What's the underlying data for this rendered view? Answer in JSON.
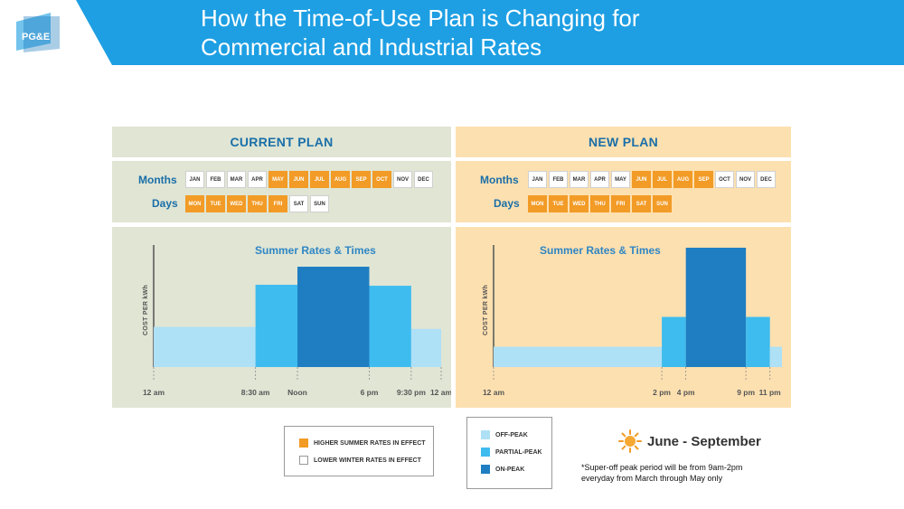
{
  "header": {
    "logo_text": "PG&E",
    "title_line1": "How the Time-of-Use Plan is Changing for",
    "title_line2": "Commercial and Industrial Rates"
  },
  "colors": {
    "header_blue": "#1e9fe3",
    "higher_summer": "#f29b26",
    "off_peak": "#aee0f6",
    "partial_peak": "#3ebcef",
    "on_peak": "#1f7ec2",
    "current_bg": "#e0e5d4",
    "new_bg": "#fde0b0"
  },
  "current_plan": {
    "heading": "CURRENT PLAN",
    "months_label": "Months",
    "days_label": "Days",
    "months": [
      {
        "label": "JAN",
        "summer": false
      },
      {
        "label": "FEB",
        "summer": false
      },
      {
        "label": "MAR",
        "summer": false
      },
      {
        "label": "APR",
        "summer": false
      },
      {
        "label": "MAY",
        "summer": true
      },
      {
        "label": "JUN",
        "summer": true
      },
      {
        "label": "JUL",
        "summer": true
      },
      {
        "label": "AUG",
        "summer": true
      },
      {
        "label": "SEP",
        "summer": true
      },
      {
        "label": "OCT",
        "summer": true
      },
      {
        "label": "NOV",
        "summer": false
      },
      {
        "label": "DEC",
        "summer": false
      }
    ],
    "days": [
      {
        "label": "MON",
        "summer": true
      },
      {
        "label": "TUE",
        "summer": true
      },
      {
        "label": "WED",
        "summer": true
      },
      {
        "label": "THU",
        "summer": true
      },
      {
        "label": "FRI",
        "summer": true
      },
      {
        "label": "SAT",
        "summer": false
      },
      {
        "label": "SUN",
        "summer": false
      }
    ]
  },
  "new_plan": {
    "heading": "NEW PLAN",
    "months_label": "Months",
    "days_label": "Days",
    "months": [
      {
        "label": "JAN",
        "summer": false
      },
      {
        "label": "FEB",
        "summer": false
      },
      {
        "label": "MAR",
        "summer": false
      },
      {
        "label": "APR",
        "summer": false
      },
      {
        "label": "MAY",
        "summer": false
      },
      {
        "label": "JUN",
        "summer": true
      },
      {
        "label": "JUL",
        "summer": true
      },
      {
        "label": "AUG",
        "summer": true
      },
      {
        "label": "SEP",
        "summer": true
      },
      {
        "label": "OCT",
        "summer": false
      },
      {
        "label": "NOV",
        "summer": false
      },
      {
        "label": "DEC",
        "summer": false
      }
    ],
    "days": [
      {
        "label": "MON",
        "summer": true
      },
      {
        "label": "TUE",
        "summer": true
      },
      {
        "label": "WED",
        "summer": true
      },
      {
        "label": "THU",
        "summer": true
      },
      {
        "label": "FRI",
        "summer": true
      },
      {
        "label": "SAT",
        "summer": true
      },
      {
        "label": "SUN",
        "summer": true
      }
    ]
  },
  "chart_data": [
    {
      "type": "bar",
      "title": "Summer Rates & Times",
      "ylabel": "COST PER kWh",
      "xlabel": "",
      "x_range_hours": [
        0,
        24
      ],
      "ylim": [
        0,
        100
      ],
      "tick_labels": [
        {
          "hour": 0,
          "label": "12 am"
        },
        {
          "hour": 8.5,
          "label": "8:30 am"
        },
        {
          "hour": 12,
          "label": "Noon"
        },
        {
          "hour": 18,
          "label": "6 pm"
        },
        {
          "hour": 21.5,
          "label": "9:30 pm"
        },
        {
          "hour": 24,
          "label": "12 am"
        }
      ],
      "segments": [
        {
          "start": 0,
          "end": 8.5,
          "level": "off-peak",
          "value": 40
        },
        {
          "start": 8.5,
          "end": 12,
          "level": "partial-peak",
          "value": 82
        },
        {
          "start": 12,
          "end": 18,
          "level": "on-peak",
          "value": 100
        },
        {
          "start": 18,
          "end": 21.5,
          "level": "partial-peak",
          "value": 81
        },
        {
          "start": 21.5,
          "end": 24,
          "level": "off-peak",
          "value": 38
        }
      ]
    },
    {
      "type": "bar",
      "title": "Summer Rates & Times",
      "ylabel": "COST PER kWh",
      "xlabel": "",
      "x_range_hours": [
        0,
        24
      ],
      "ylim": [
        0,
        100
      ],
      "tick_labels": [
        {
          "hour": 0,
          "label": "12 am"
        },
        {
          "hour": 14,
          "label": "2 pm"
        },
        {
          "hour": 16,
          "label": "4 pm"
        },
        {
          "hour": 21,
          "label": "9 pm"
        },
        {
          "hour": 23,
          "label": "11 pm"
        }
      ],
      "segments": [
        {
          "start": 0,
          "end": 14,
          "level": "off-peak",
          "value": 17
        },
        {
          "start": 14,
          "end": 16,
          "level": "partial-peak",
          "value": 42
        },
        {
          "start": 16,
          "end": 21,
          "level": "on-peak",
          "value": 100
        },
        {
          "start": 21,
          "end": 23,
          "level": "partial-peak",
          "value": 42
        },
        {
          "start": 23,
          "end": 24,
          "level": "off-peak",
          "value": 17
        }
      ]
    }
  ],
  "legend_rates": {
    "higher": "HIGHER SUMMER RATES IN EFFECT",
    "lower": "LOWER WINTER RATES IN EFFECT"
  },
  "legend_peak": {
    "off": "OFF-PEAK",
    "partial": "PARTIAL-PEAK",
    "on": "ON-PEAK"
  },
  "season": {
    "text": "June - September",
    "icon": "sun-icon"
  },
  "note": {
    "line1": "*Super-off peak  period will be from 9am-2pm",
    "line2": "everyday from March through May  only"
  }
}
